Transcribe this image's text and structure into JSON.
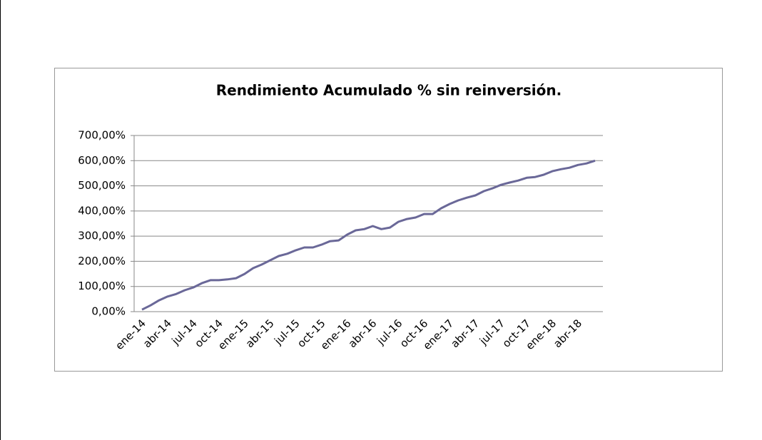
{
  "chart_data": {
    "type": "line",
    "title": "Rendimiento Acumulado % sin reinversión.",
    "categories": [
      "ene-14",
      null,
      null,
      "abr-14",
      null,
      null,
      "jul-14",
      null,
      null,
      "oct-14",
      null,
      null,
      "ene-15",
      null,
      null,
      "abr-15",
      null,
      null,
      "jul-15",
      null,
      null,
      "oct-15",
      null,
      null,
      "ene-16",
      null,
      null,
      "abr-16",
      null,
      null,
      "jul-16",
      null,
      null,
      "oct-16",
      null,
      null,
      "ene-17",
      null,
      null,
      "abr-17",
      null,
      null,
      "jul-17",
      null,
      null,
      "oct-17",
      null,
      null,
      "ene-18",
      null,
      null,
      "abr-18",
      null,
      null
    ],
    "values": [
      8,
      25,
      45,
      60,
      70,
      85,
      96,
      113,
      125,
      125,
      128,
      133,
      150,
      173,
      187,
      204,
      221,
      230,
      244,
      255,
      255,
      266,
      280,
      283,
      306,
      323,
      328,
      340,
      328,
      334,
      357,
      368,
      374,
      388,
      388,
      411,
      428,
      442,
      453,
      462,
      479,
      490,
      504,
      513,
      521,
      532,
      535,
      544,
      558,
      566,
      572,
      583,
      589,
      600
    ],
    "color": "#6a6898",
    "ylim": [
      0,
      700
    ],
    "yticks": [
      {
        "value": 0,
        "label": "0,00%"
      },
      {
        "value": 100,
        "label": "100,00%"
      },
      {
        "value": 200,
        "label": "200,00%"
      },
      {
        "value": 300,
        "label": "300,00%"
      },
      {
        "value": 400,
        "label": "400,00%"
      },
      {
        "value": 500,
        "label": "500,00%"
      },
      {
        "value": 600,
        "label": "600,00%"
      },
      {
        "value": 700,
        "label": "700,00%"
      }
    ],
    "grid": true
  }
}
